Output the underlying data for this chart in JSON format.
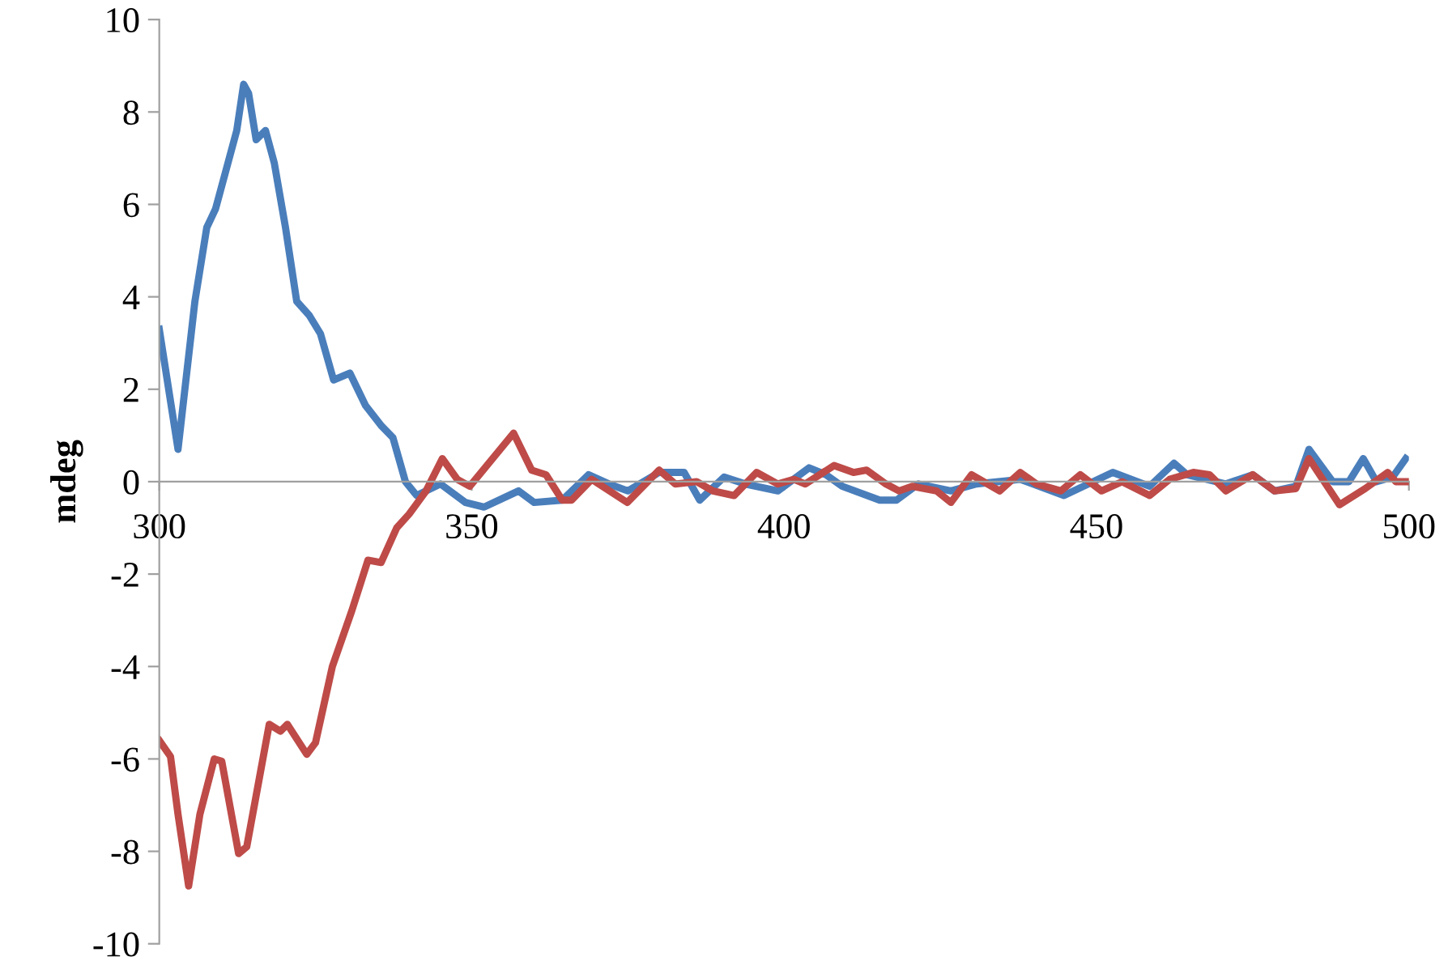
{
  "chart_data": {
    "type": "line",
    "ylabel": "mdeg",
    "xlim": [
      300,
      500
    ],
    "ylim": [
      -10,
      10
    ],
    "xticks": [
      300,
      350,
      400,
      450,
      500
    ],
    "yticks": [
      -10,
      -8,
      -6,
      -4,
      -2,
      0,
      2,
      4,
      6,
      8,
      10
    ],
    "grid": false,
    "legend": false,
    "marker": "none",
    "line_style": "solid",
    "series": [
      {
        "color": "#4a7ebb",
        "x": [
          300,
          303,
          305.7,
          307.6,
          309,
          311,
          312.4,
          313.5,
          314.3,
          315.5,
          317,
          318.4,
          320.2,
          322,
          324,
          325.8,
          327.9,
          330.5,
          333,
          335.6,
          337.4,
          339.4,
          341.2,
          345,
          349,
          352,
          357.5,
          360,
          364.5,
          368.7,
          372,
          375,
          380,
          384,
          386.5,
          390.4,
          393.8,
          399,
          404,
          406.7,
          409.3,
          415.3,
          418,
          421.5,
          426.7,
          430.8,
          437.8,
          444.8,
          452.6,
          458.5,
          462.4,
          464.5,
          470.7,
          475,
          478.5,
          481.9,
          484,
          487.8,
          490.4,
          492.7,
          494.8,
          497.4,
          499.5
        ],
        "values": [
          3.3,
          0.7,
          3.9,
          5.5,
          5.9,
          6.9,
          7.6,
          8.6,
          8.4,
          7.4,
          7.6,
          6.9,
          5.5,
          3.9,
          3.6,
          3.2,
          2.2,
          2.35,
          1.65,
          1.2,
          0.95,
          0,
          -0.3,
          -0.05,
          -0.45,
          -0.55,
          -0.2,
          -0.45,
          -0.4,
          0.15,
          -0.05,
          -0.2,
          0.2,
          0.2,
          -0.4,
          0.1,
          -0.05,
          -0.2,
          0.3,
          0.15,
          -0.1,
          -0.4,
          -0.4,
          -0.05,
          -0.2,
          -0.05,
          0.05,
          -0.3,
          0.2,
          -0.1,
          0.4,
          0.15,
          -0.05,
          0.15,
          -0.2,
          -0.1,
          0.7,
          0,
          0,
          0.5,
          0,
          0.1,
          0.5
        ]
      },
      {
        "color": "#be4b48",
        "x": [
          300,
          301.8,
          303,
          304.7,
          306.5,
          308.8,
          310,
          312.7,
          314,
          317.6,
          319.4,
          320.5,
          323.6,
          325,
          327.7,
          330.8,
          333.4,
          335.5,
          338,
          340,
          342.7,
          345.3,
          347.7,
          349.7,
          356.7,
          359.6,
          361.9,
          364.5,
          366,
          369.2,
          374.9,
          380,
          382.6,
          386,
          388.6,
          392,
          395.6,
          399,
          401.6,
          403.4,
          408,
          411.1,
          413.2,
          416.3,
          418.4,
          420.5,
          424.4,
          426.7,
          430,
          434.5,
          437.8,
          440.4,
          444.3,
          447.4,
          450.8,
          454.1,
          458.5,
          461.7,
          465.5,
          468.1,
          470.7,
          475,
          478.5,
          481.9,
          484,
          488.9,
          493,
          496.6,
          497.9,
          499.5
        ],
        "values": [
          -5.6,
          -5.95,
          -7.2,
          -8.75,
          -7.2,
          -6,
          -6.05,
          -8.05,
          -7.9,
          -5.25,
          -5.4,
          -5.25,
          -5.9,
          -5.65,
          -4,
          -2.8,
          -1.7,
          -1.75,
          -1,
          -0.7,
          -0.2,
          0.5,
          0.05,
          -0.1,
          1.05,
          0.25,
          0.15,
          -0.4,
          -0.4,
          0.05,
          -0.45,
          0.25,
          -0.05,
          0,
          -0.2,
          -0.3,
          0.2,
          -0.05,
          0.05,
          -0.05,
          0.35,
          0.2,
          0.25,
          -0.05,
          -0.2,
          -0.1,
          -0.2,
          -0.45,
          0.15,
          -0.2,
          0.2,
          -0.05,
          -0.2,
          0.15,
          -0.2,
          0,
          -0.3,
          0.05,
          0.2,
          0.15,
          -0.2,
          0.15,
          -0.2,
          -0.15,
          0.5,
          -0.5,
          -0.15,
          0.2,
          0,
          0
        ]
      }
    ]
  }
}
